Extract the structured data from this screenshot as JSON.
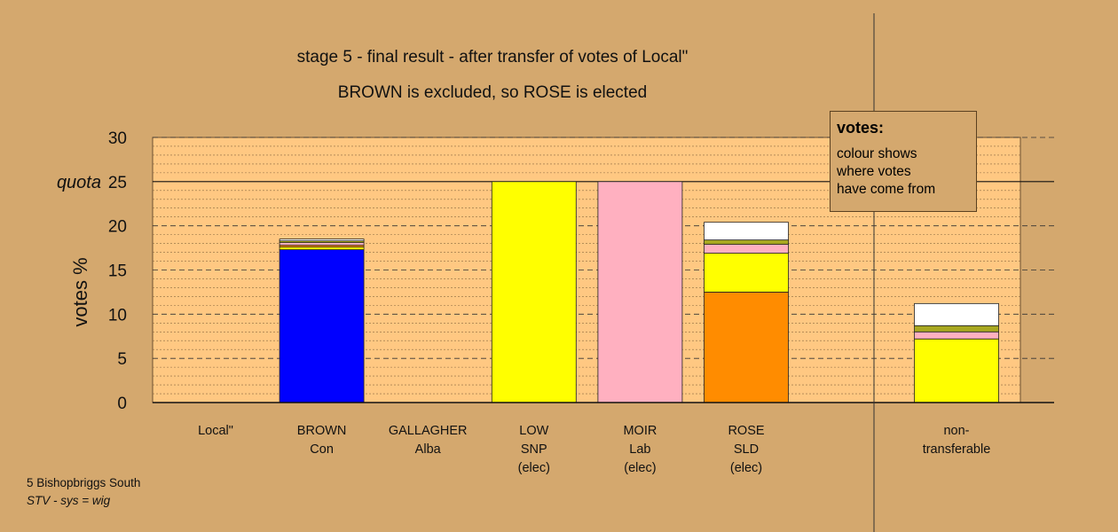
{
  "title": "stage 5 - final result - after transfer of votes of Local\"",
  "subtitle": "BROWN is excluded, so ROSE is elected",
  "legend": {
    "heading": "votes:",
    "lines": [
      "colour shows",
      "where votes",
      "have come from"
    ]
  },
  "footer": {
    "line1": "5 Bishopbriggs South",
    "line2": "STV - sys = wig"
  },
  "chart_data": {
    "type": "bar",
    "stacked": true,
    "title": "stage 5 - final result - after transfer of votes of Local\"",
    "ylabel": "votes %",
    "ylim": [
      0,
      30
    ],
    "yticks": [
      0,
      5,
      10,
      15,
      20,
      25,
      30
    ],
    "quota": {
      "value": 25,
      "label": "quota"
    },
    "grid": "dashed",
    "categories": [
      {
        "lines": [
          "Local\""
        ],
        "segments": []
      },
      {
        "lines": [
          "BROWN",
          "Con"
        ],
        "segments": [
          {
            "value": 17.3,
            "color": "#0000FF"
          },
          {
            "value": 0.3,
            "color": "#FFFF00"
          },
          {
            "value": 0.2,
            "color": "#FF8C00"
          },
          {
            "value": 0.3,
            "color": "#FFB0C0"
          },
          {
            "value": 0.2,
            "color": "#A8A820"
          },
          {
            "value": 0.2,
            "color": "#FFFFFF"
          }
        ]
      },
      {
        "lines": [
          "GALLAGHER",
          "Alba"
        ],
        "segments": []
      },
      {
        "lines": [
          "LOW",
          "SNP",
          "(elec)"
        ],
        "segments": [
          {
            "value": 25.0,
            "color": "#FFFF00"
          }
        ]
      },
      {
        "lines": [
          "MOIR",
          "Lab",
          "(elec)"
        ],
        "segments": [
          {
            "value": 25.0,
            "color": "#FFB0C0"
          }
        ]
      },
      {
        "lines": [
          "ROSE",
          "SLD",
          "(elec)"
        ],
        "segments": [
          {
            "value": 12.5,
            "color": "#FF8C00"
          },
          {
            "value": 4.4,
            "color": "#FFFF00"
          },
          {
            "value": 1.0,
            "color": "#FFB0C0"
          },
          {
            "value": 0.5,
            "color": "#A8A820"
          },
          {
            "value": 2.0,
            "color": "#FFFFFF"
          }
        ]
      },
      {
        "lines": [
          "non-",
          "transferable"
        ],
        "segments": [
          {
            "value": 7.2,
            "color": "#FFFF00"
          },
          {
            "value": 0.8,
            "color": "#FFB0C0"
          },
          {
            "value": 0.7,
            "color": "#A8A820"
          },
          {
            "value": 2.5,
            "color": "#FFFFFF"
          }
        ]
      }
    ]
  }
}
